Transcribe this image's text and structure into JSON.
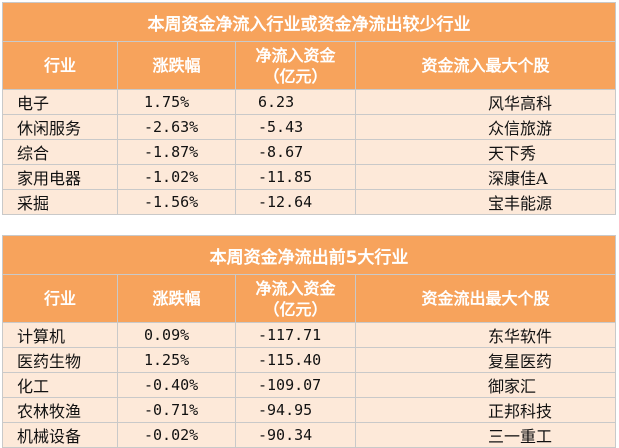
{
  "inflow_table": {
    "title": "本周资金净流入行业或资金净流出较少行业",
    "headers": {
      "industry": "行业",
      "change": "涨跌幅",
      "netflow_line1": "净流入资金",
      "netflow_line2": "（亿元）",
      "top_stock": "资金流入最大个股"
    },
    "rows": [
      {
        "industry": "电子",
        "change": "1.75%",
        "netflow": "6.23",
        "top_stock": "风华高科"
      },
      {
        "industry": "休闲服务",
        "change": "-2.63%",
        "netflow": "-5.43",
        "top_stock": "众信旅游"
      },
      {
        "industry": "综合",
        "change": "-1.87%",
        "netflow": "-8.67",
        "top_stock": "天下秀"
      },
      {
        "industry": "家用电器",
        "change": "-1.02%",
        "netflow": "-11.85",
        "top_stock": "深康佳A"
      },
      {
        "industry": "采掘",
        "change": "-1.56%",
        "netflow": "-12.64",
        "top_stock": "宝丰能源"
      }
    ]
  },
  "outflow_table": {
    "title": "本周资金净流出前5大行业",
    "headers": {
      "industry": "行业",
      "change": "涨跌幅",
      "netflow_line1": "净流入资金",
      "netflow_line2": "（亿元）",
      "top_stock": "资金流出最大个股"
    },
    "rows": [
      {
        "industry": "计算机",
        "change": "0.09%",
        "netflow": "-117.71",
        "top_stock": "东华软件"
      },
      {
        "industry": "医药生物",
        "change": "1.25%",
        "netflow": "-115.40",
        "top_stock": "复星医药"
      },
      {
        "industry": "化工",
        "change": "-0.40%",
        "netflow": "-109.07",
        "top_stock": "御家汇"
      },
      {
        "industry": "农林牧渔",
        "change": "-0.71%",
        "netflow": "-94.95",
        "top_stock": "正邦科技"
      },
      {
        "industry": "机械设备",
        "change": "-0.02%",
        "netflow": "-90.34",
        "top_stock": "三一重工"
      }
    ]
  },
  "colors": {
    "header_bg": "#f7a35c",
    "row_bg": "#fde9d9",
    "border": "#c9c9c9"
  }
}
